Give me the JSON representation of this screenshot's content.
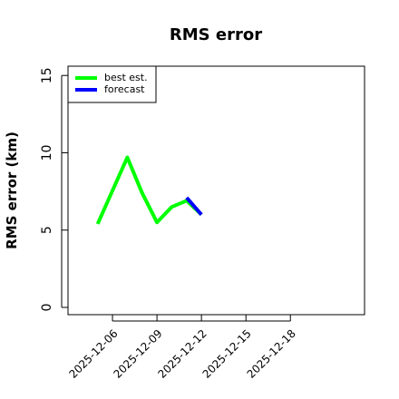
{
  "chart_data": {
    "type": "line",
    "title": "RMS error",
    "y_label": "RMS error (km)",
    "x": [
      "2025-12-05",
      "2025-12-07",
      "2025-12-08",
      "2025-12-09",
      "2025-12-10",
      "2025-12-11",
      "2025-12-12"
    ],
    "series": [
      {
        "name": "best est.",
        "color": "#00ff00",
        "values": [
          5.4,
          9.7,
          7.4,
          5.5,
          6.5,
          6.9,
          6.0
        ]
      },
      {
        "name": "forecast",
        "color": "#0000ff",
        "values": [
          null,
          null,
          null,
          null,
          null,
          7.1,
          6.0
        ]
      }
    ],
    "xlim": [
      "2025-12-03",
      "2025-12-23"
    ],
    "xticks": [
      "2025-12-06",
      "2025-12-09",
      "2025-12-12",
      "2025-12-15",
      "2025-12-18"
    ],
    "ylim": [
      -0.47,
      15.6
    ],
    "yticks": [
      0,
      5,
      10,
      15
    ],
    "legend": "top-left"
  }
}
